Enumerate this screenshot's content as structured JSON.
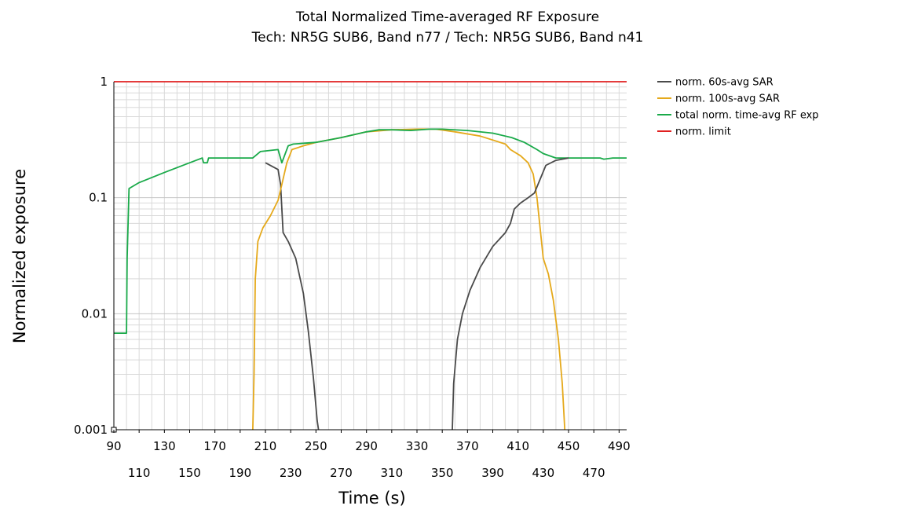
{
  "chart_data": {
    "type": "line",
    "title": "Total Normalized Time-averaged RF Exposure",
    "subtitle": "Tech: NR5G SUB6, Band n77 / Tech: NR5G SUB6, Band n41",
    "xlabel": "Time (s)",
    "ylabel": "Normalized exposure",
    "xlim": [
      90,
      496
    ],
    "ylim": [
      0.001,
      1
    ],
    "yscale": "log",
    "grid": true,
    "legend_position": "top-right",
    "x_ticks_upper": [
      90,
      130,
      170,
      210,
      250,
      290,
      330,
      370,
      410,
      450,
      490
    ],
    "x_ticks_lower": [
      110,
      150,
      190,
      230,
      270,
      310,
      350,
      390,
      430,
      470
    ],
    "y_ticks": [
      {
        "value": 1,
        "label": "1"
      },
      {
        "value": 0.1,
        "label": "0.1"
      },
      {
        "value": 0.01,
        "label": "0.01"
      },
      {
        "value": 0.001,
        "label": "0.001"
      }
    ],
    "series": [
      {
        "name": "norm. 60s-avg SAR",
        "color": "#4a4a4a",
        "points": [
          [
            210,
            0.2
          ],
          [
            220,
            0.175
          ],
          [
            222,
            0.13
          ],
          [
            224,
            0.05
          ],
          [
            228,
            0.042
          ],
          [
            234,
            0.03
          ],
          [
            240,
            0.015
          ],
          [
            244,
            0.007
          ],
          [
            248,
            0.0028
          ],
          [
            251,
            0.0012
          ],
          [
            252,
            0.001
          ]
        ]
      },
      {
        "name": "norm. 100s-avg SAR",
        "color": "#e5a91b",
        "points": [
          [
            200,
            0.001
          ],
          [
            201,
            0.003
          ],
          [
            202,
            0.02
          ],
          [
            204,
            0.042
          ],
          [
            208,
            0.055
          ],
          [
            214,
            0.07
          ],
          [
            220,
            0.095
          ],
          [
            223,
            0.13
          ],
          [
            227,
            0.2
          ],
          [
            231,
            0.26
          ],
          [
            240,
            0.28
          ],
          [
            250,
            0.3
          ],
          [
            270,
            0.33
          ],
          [
            290,
            0.37
          ],
          [
            310,
            0.385
          ],
          [
            330,
            0.39
          ],
          [
            345,
            0.39
          ],
          [
            360,
            0.37
          ],
          [
            380,
            0.34
          ],
          [
            400,
            0.29
          ],
          [
            404,
            0.26
          ],
          [
            412,
            0.23
          ],
          [
            418,
            0.2
          ],
          [
            422,
            0.16
          ],
          [
            425,
            0.1
          ],
          [
            430,
            0.03
          ],
          [
            434,
            0.022
          ],
          [
            438,
            0.013
          ],
          [
            442,
            0.006
          ],
          [
            445,
            0.0025
          ],
          [
            447,
            0.001
          ]
        ]
      },
      {
        "name": "total norm. time-avg RF exp",
        "color": "#1aaa4a",
        "points": [
          [
            90,
            0.0068
          ],
          [
            100,
            0.0068
          ],
          [
            100.5,
            0.03
          ],
          [
            102,
            0.12
          ],
          [
            110,
            0.135
          ],
          [
            130,
            0.165
          ],
          [
            150,
            0.2
          ],
          [
            160,
            0.22
          ],
          [
            161,
            0.2
          ],
          [
            164,
            0.2
          ],
          [
            165,
            0.22
          ],
          [
            170,
            0.22
          ],
          [
            200,
            0.22
          ],
          [
            206,
            0.25
          ],
          [
            220,
            0.26
          ],
          [
            223,
            0.2
          ],
          [
            228,
            0.28
          ],
          [
            232,
            0.29
          ],
          [
            250,
            0.3
          ],
          [
            270,
            0.33
          ],
          [
            290,
            0.37
          ],
          [
            300,
            0.385
          ],
          [
            310,
            0.385
          ],
          [
            325,
            0.38
          ],
          [
            340,
            0.39
          ],
          [
            350,
            0.39
          ],
          [
            370,
            0.38
          ],
          [
            390,
            0.36
          ],
          [
            405,
            0.33
          ],
          [
            415,
            0.3
          ],
          [
            425,
            0.26
          ],
          [
            430,
            0.24
          ],
          [
            440,
            0.22
          ],
          [
            450,
            0.22
          ],
          [
            475,
            0.22
          ],
          [
            478,
            0.215
          ],
          [
            485,
            0.22
          ],
          [
            496,
            0.22
          ]
        ]
      },
      {
        "name": "norm. limit",
        "color": "#e02020",
        "points": [
          [
            90,
            1
          ],
          [
            496,
            1
          ]
        ]
      },
      {
        "name": "",
        "color": "#4a4a4a",
        "points": [
          [
            358,
            0.001
          ],
          [
            359,
            0.0025
          ],
          [
            362,
            0.006
          ],
          [
            366,
            0.01
          ],
          [
            372,
            0.016
          ],
          [
            380,
            0.025
          ],
          [
            390,
            0.038
          ],
          [
            400,
            0.05
          ],
          [
            404,
            0.06
          ],
          [
            407,
            0.08
          ],
          [
            412,
            0.09
          ],
          [
            418,
            0.1
          ],
          [
            423,
            0.11
          ],
          [
            427,
            0.14
          ],
          [
            432,
            0.19
          ],
          [
            440,
            0.21
          ],
          [
            450,
            0.22
          ]
        ]
      }
    ]
  }
}
